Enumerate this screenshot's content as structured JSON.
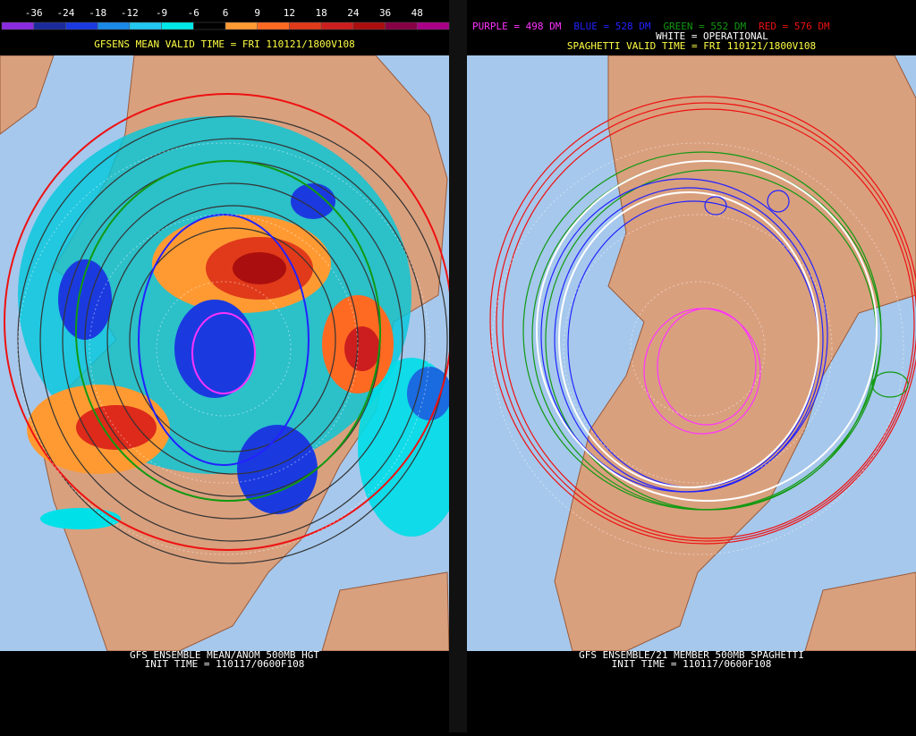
{
  "left_panel": {
    "colorbar_labels": [
      "-36",
      "-24",
      "-18",
      "-12",
      "-9",
      "-6",
      "6",
      "9",
      "12",
      "18",
      "24",
      "36",
      "48"
    ],
    "header": "GFSENS MEAN VALID TIME = FRI 110121/1800V108",
    "footer_lines": [
      "GFS ENSEMBLE MEAN/ANOM 500MB HGT",
      "INIT TIME = 110117/0600F108"
    ]
  },
  "right_panel": {
    "legend": [
      {
        "text": "PURPLE = 498 DM",
        "color": "#ff33ff"
      },
      {
        "text": "BLUE = 528 DM",
        "color": "#2222ff"
      },
      {
        "text": "GREEN = 552 DM",
        "color": "#119911"
      },
      {
        "text": "RED = 576 DM",
        "color": "#ee1111"
      }
    ],
    "operational": "WHITE = OPERATIONAL",
    "header": "SPAGHETTI VALID TIME = FRI 110121/1800V108",
    "footer_lines": [
      "GFS ENSEMBLE/21 MEMBER 500MB SPAGHETTI",
      "INIT TIME = 110117/0600F108"
    ]
  }
}
